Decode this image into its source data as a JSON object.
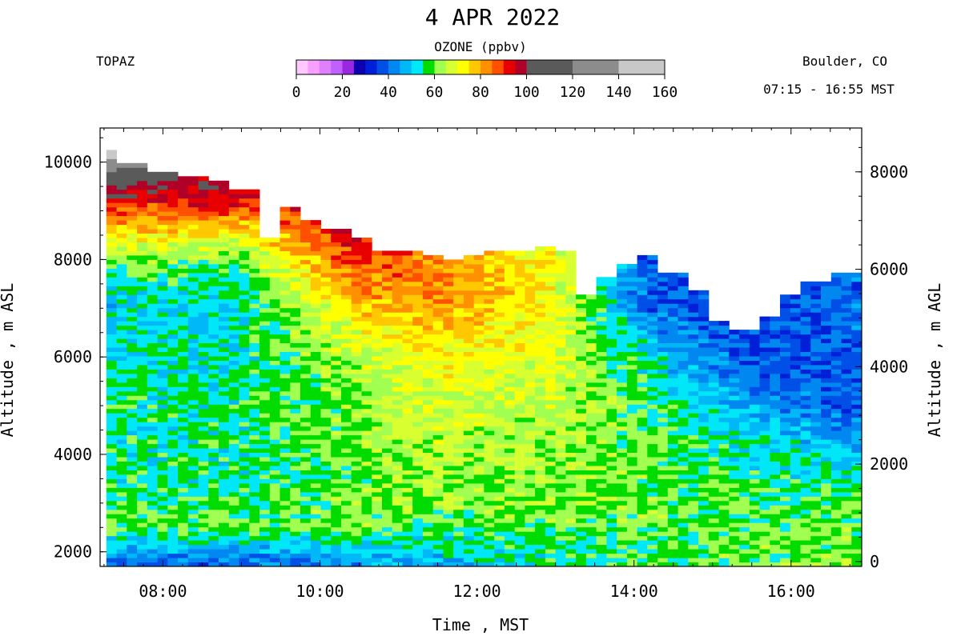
{
  "chart_data": {
    "type": "heatmap",
    "title": "4 APR 2022",
    "instrument": "TOPAZ",
    "location": "Boulder, CO",
    "time_range": "07:15 - 16:55 MST",
    "colorbar": {
      "title": "OZONE (ppbv)",
      "ticks": [
        "0",
        "20",
        "40",
        "60",
        "80",
        "100",
        "120",
        "140",
        "160"
      ],
      "min": 0,
      "max": 160,
      "stops": [
        {
          "from": 0,
          "to": 5,
          "color": "#ffc8ff"
        },
        {
          "from": 5,
          "to": 10,
          "color": "#f8a0ff"
        },
        {
          "from": 10,
          "to": 15,
          "color": "#e080ff"
        },
        {
          "from": 15,
          "to": 20,
          "color": "#c060ff"
        },
        {
          "from": 20,
          "to": 25,
          "color": "#9a28e0"
        },
        {
          "from": 25,
          "to": 30,
          "color": "#0c00b0"
        },
        {
          "from": 30,
          "to": 35,
          "color": "#0020d8"
        },
        {
          "from": 35,
          "to": 40,
          "color": "#0050e8"
        },
        {
          "from": 40,
          "to": 45,
          "color": "#0088f0"
        },
        {
          "from": 45,
          "to": 50,
          "color": "#00b8f8"
        },
        {
          "from": 50,
          "to": 55,
          "color": "#00e8f8"
        },
        {
          "from": 55,
          "to": 60,
          "color": "#00dc00"
        },
        {
          "from": 60,
          "to": 65,
          "color": "#a0ff50"
        },
        {
          "from": 65,
          "to": 70,
          "color": "#d8ff30"
        },
        {
          "from": 70,
          "to": 75,
          "color": "#ffff00"
        },
        {
          "from": 75,
          "to": 80,
          "color": "#ffc800"
        },
        {
          "from": 80,
          "to": 85,
          "color": "#ff9000"
        },
        {
          "from": 85,
          "to": 90,
          "color": "#ff5000"
        },
        {
          "from": 90,
          "to": 95,
          "color": "#e80000"
        },
        {
          "from": 95,
          "to": 100,
          "color": "#b00028"
        },
        {
          "from": 100,
          "to": 120,
          "color": "#5a5a5a"
        },
        {
          "from": 120,
          "to": 140,
          "color": "#8c8c8c"
        },
        {
          "from": 140,
          "to": 160,
          "color": "#c8c8c8"
        }
      ]
    },
    "xlabel": "Time , MST",
    "ylabel_left": "Altitude , m ASL",
    "ylabel_right": "Altitude , m AGL",
    "xlim_hours": [
      7.2,
      16.9
    ],
    "ylim_left": [
      1700,
      10700
    ],
    "ground_altitude_m": 1800,
    "x_ticks": [
      {
        "value": 8,
        "label": "08:00"
      },
      {
        "value": 10,
        "label": "10:00"
      },
      {
        "value": 12,
        "label": "12:00"
      },
      {
        "value": 14,
        "label": "14:00"
      },
      {
        "value": 16,
        "label": "16:00"
      }
    ],
    "y_ticks_left": [
      {
        "value": 2000,
        "label": "2000"
      },
      {
        "value": 4000,
        "label": "4000"
      },
      {
        "value": 6000,
        "label": "6000"
      },
      {
        "value": 8000,
        "label": "8000"
      },
      {
        "value": 10000,
        "label": "10000"
      }
    ],
    "y_ticks_right": [
      {
        "value": 0,
        "label": "0"
      },
      {
        "value": 2000,
        "label": "2000"
      },
      {
        "value": 4000,
        "label": "4000"
      },
      {
        "value": 6000,
        "label": "6000"
      },
      {
        "value": 8000,
        "label": "8000"
      }
    ],
    "profile_top_m": [
      {
        "t": 7.3,
        "top": 10200
      },
      {
        "t": 7.65,
        "top": 9900
      },
      {
        "t": 8.0,
        "top": 9800
      },
      {
        "t": 8.35,
        "top": 9700
      },
      {
        "t": 8.7,
        "top": 9600
      },
      {
        "t": 9.05,
        "top": 9400
      },
      {
        "t": 9.35,
        "top": 8400
      },
      {
        "t": 9.6,
        "top": 9000
      },
      {
        "t": 9.9,
        "top": 8800
      },
      {
        "t": 10.2,
        "top": 8600
      },
      {
        "t": 10.5,
        "top": 8400
      },
      {
        "t": 10.8,
        "top": 8150
      },
      {
        "t": 11.1,
        "top": 8100
      },
      {
        "t": 11.4,
        "top": 8050
      },
      {
        "t": 11.7,
        "top": 8000
      },
      {
        "t": 12.0,
        "top": 8050
      },
      {
        "t": 12.3,
        "top": 8100
      },
      {
        "t": 12.6,
        "top": 8150
      },
      {
        "t": 12.9,
        "top": 8200
      },
      {
        "t": 13.2,
        "top": 8150
      },
      {
        "t": 13.4,
        "top": 7200
      },
      {
        "t": 13.6,
        "top": 7600
      },
      {
        "t": 13.9,
        "top": 7900
      },
      {
        "t": 14.2,
        "top": 8050
      },
      {
        "t": 14.5,
        "top": 7700
      },
      {
        "t": 14.8,
        "top": 7300
      },
      {
        "t": 15.1,
        "top": 6700
      },
      {
        "t": 15.4,
        "top": 6500
      },
      {
        "t": 15.7,
        "top": 6800
      },
      {
        "t": 16.0,
        "top": 7200
      },
      {
        "t": 16.3,
        "top": 7500
      },
      {
        "t": 16.6,
        "top": 7700
      },
      {
        "t": 16.8,
        "top": 7700
      }
    ],
    "ozone_field_ppbv": [
      {
        "t": 7.3,
        "alt": [
          [
            1800,
            40
          ],
          [
            2500,
            60
          ],
          [
            3500,
            55
          ],
          [
            5000,
            55
          ],
          [
            7000,
            50
          ],
          [
            8000,
            60
          ],
          [
            8700,
            80
          ],
          [
            9300,
            95
          ],
          [
            9700,
            110
          ],
          [
            10100,
            140
          ]
        ]
      },
      {
        "t": 9.0,
        "alt": [
          [
            1800,
            40
          ],
          [
            2500,
            60
          ],
          [
            3500,
            55
          ],
          [
            5000,
            55
          ],
          [
            7000,
            52
          ],
          [
            8000,
            60
          ],
          [
            8800,
            80
          ],
          [
            9300,
            95
          ]
        ]
      },
      {
        "t": 10.5,
        "alt": [
          [
            1800,
            45
          ],
          [
            2500,
            60
          ],
          [
            4000,
            60
          ],
          [
            5500,
            63
          ],
          [
            6500,
            70
          ],
          [
            7300,
            80
          ],
          [
            8000,
            90
          ],
          [
            8400,
            95
          ]
        ]
      },
      {
        "t": 11.5,
        "alt": [
          [
            1800,
            48
          ],
          [
            3000,
            62
          ],
          [
            4500,
            65
          ],
          [
            6000,
            72
          ],
          [
            7000,
            80
          ],
          [
            7600,
            85
          ],
          [
            8000,
            80
          ]
        ]
      },
      {
        "t": 13.0,
        "alt": [
          [
            1800,
            55
          ],
          [
            3000,
            62
          ],
          [
            5000,
            65
          ],
          [
            6000,
            68
          ],
          [
            7000,
            72
          ],
          [
            8100,
            70
          ]
        ]
      },
      {
        "t": 14.2,
        "alt": [
          [
            1800,
            58
          ],
          [
            3000,
            60
          ],
          [
            5000,
            58
          ],
          [
            6000,
            52
          ],
          [
            7000,
            40
          ],
          [
            8000,
            38
          ]
        ]
      },
      {
        "t": 15.5,
        "alt": [
          [
            1800,
            60
          ],
          [
            3000,
            58
          ],
          [
            4500,
            52
          ],
          [
            5500,
            40
          ],
          [
            6300,
            35
          ]
        ]
      },
      {
        "t": 16.7,
        "alt": [
          [
            1800,
            62
          ],
          [
            3000,
            58
          ],
          [
            4000,
            50
          ],
          [
            5000,
            38
          ],
          [
            7600,
            40
          ]
        ]
      }
    ]
  }
}
